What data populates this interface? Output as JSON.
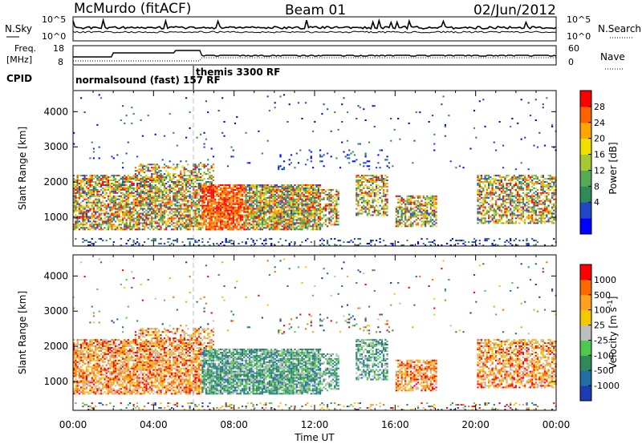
{
  "header": {
    "station": "McMurdo (fitACF)",
    "beam": "Beam 01",
    "date": "02/Jun/2012"
  },
  "noise_panel": {
    "left_label": "N.Sky",
    "right_label": "N.Search",
    "left_ticks": [
      "10^5",
      "10^0"
    ],
    "right_ticks": [
      "10^5",
      "10^0"
    ]
  },
  "freq_panel": {
    "left_label_line1": "Freq.",
    "left_label_line2": "[MHz]",
    "right_label": "Nave",
    "left_ticks": [
      "18",
      "8"
    ],
    "right_ticks": [
      "60",
      "0"
    ]
  },
  "cpid": {
    "label": "CPID",
    "programs": [
      "normalsound (fast) 157 RF",
      "themis 3300 RF"
    ]
  },
  "chart_data": [
    {
      "type": "heatmap",
      "name": "power",
      "xlabel": "",
      "ylabel": "Slant Range [km]",
      "yticks": [
        1000,
        2000,
        3000,
        4000
      ],
      "ylim": [
        180,
        4600
      ],
      "xlim": [
        0,
        24
      ],
      "colorbar_label": "Power [dB]",
      "colorbar_ticks": [
        "28",
        "24",
        "20",
        "16",
        "12",
        "8",
        "4"
      ],
      "colorbar_colors": [
        "#0000ff",
        "#2147c8",
        "#2e8b57",
        "#55aa55",
        "#a6c832",
        "#f0e000",
        "#ffa500",
        "#ff6000",
        "#ff0000"
      ]
    },
    {
      "type": "heatmap",
      "name": "velocity",
      "xlabel": "Time UT",
      "ylabel": "Slant Range [km]",
      "yticks": [
        1000,
        2000,
        3000,
        4000
      ],
      "ylim": [
        180,
        4600
      ],
      "xlim": [
        0,
        24
      ],
      "xticks": [
        "00:00",
        "04:00",
        "08:00",
        "12:00",
        "16:00",
        "20:00",
        "00:00"
      ],
      "colorbar_label": "Velocity [m s-1]",
      "colorbar_ticks": [
        "1000",
        "500",
        "100",
        "25",
        "-25",
        "-100",
        "-500",
        "-1000"
      ],
      "colorbar_colors": [
        "#1c3cb4",
        "#226fa8",
        "#2e8b57",
        "#4fc84f",
        "#bebebe",
        "#f5c800",
        "#ffa020",
        "#ff6a00",
        "#ff0000"
      ]
    }
  ]
}
